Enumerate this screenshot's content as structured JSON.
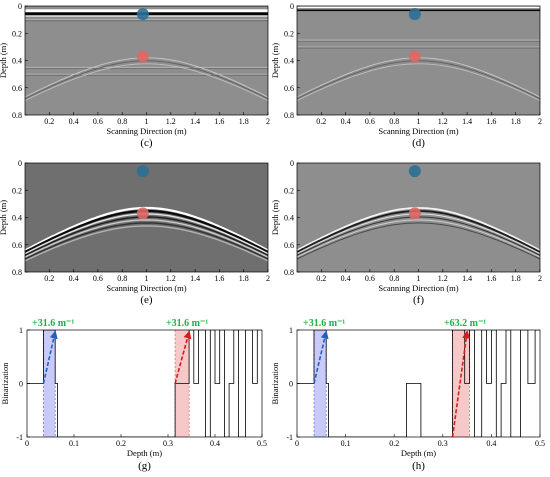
{
  "chart_data": [
    {
      "panel": "c",
      "type": "radargram",
      "caption": "(c)",
      "xlabel": "Scanning Direction (m)",
      "ylabel": "Depth (m)",
      "xlim": [
        0,
        2
      ],
      "ylim": [
        0.8,
        0
      ],
      "xticks": [
        "0.2",
        "0.4",
        "0.6",
        "0.8",
        "1",
        "1.2",
        "1.4",
        "1.6",
        "1.8",
        "2"
      ],
      "yticks": [
        "0",
        "0.2",
        "0.4",
        "0.6",
        "0.8"
      ],
      "background": "#8e8e8e",
      "surface_band": {
        "depth": 0.05,
        "strength": "strong"
      },
      "horizontal_reflections": [
        0.1,
        0.45,
        0.5
      ],
      "hyperbola": {
        "apex_x": 1.0,
        "apex_depth": 0.38,
        "strength": "weak"
      },
      "markers": [
        {
          "x": 0.97,
          "y": 0.06,
          "color": "#2a6f97"
        },
        {
          "x": 0.97,
          "y": 0.37,
          "color": "#e06666"
        }
      ]
    },
    {
      "panel": "d",
      "type": "radargram",
      "caption": "(d)",
      "xlabel": "Scanning Direction (m)",
      "ylabel": "Depth (m)",
      "xlim": [
        0,
        2
      ],
      "ylim": [
        0.8,
        0
      ],
      "xticks": [
        "0.2",
        "0.4",
        "0.6",
        "0.8",
        "1",
        "1.2",
        "1.4",
        "1.6",
        "1.8",
        "2"
      ],
      "yticks": [
        "0",
        "0.2",
        "0.4",
        "0.6",
        "0.8"
      ],
      "background": "#8e8e8e",
      "surface_band": {
        "depth": 0.03,
        "strength": "weak"
      },
      "horizontal_reflections": [
        0.25,
        0.3
      ],
      "hyperbola": {
        "apex_x": 1.0,
        "apex_depth": 0.38,
        "strength": "weak"
      },
      "markers": [
        {
          "x": 0.97,
          "y": 0.06,
          "color": "#2a6f97"
        },
        {
          "x": 0.97,
          "y": 0.37,
          "color": "#e06666"
        }
      ]
    },
    {
      "panel": "e",
      "type": "radargram",
      "caption": "(e)",
      "xlabel": "Scanning Direction (m)",
      "ylabel": "Depth (m)",
      "xlim": [
        0,
        2
      ],
      "ylim": [
        0.8,
        0
      ],
      "xticks": [
        "0.2",
        "0.4",
        "0.6",
        "0.8",
        "1",
        "1.2",
        "1.4",
        "1.6",
        "1.8",
        "2"
      ],
      "yticks": [
        "0",
        "0.2",
        "0.4",
        "0.6",
        "0.8"
      ],
      "background": "#6f6f6f",
      "surface_band": null,
      "horizontal_reflections": [],
      "hyperbola": {
        "apex_x": 1.0,
        "apex_depth": 0.33,
        "strength": "strong"
      },
      "markers": [
        {
          "x": 0.97,
          "y": 0.06,
          "color": "#2a6f97"
        },
        {
          "x": 0.97,
          "y": 0.37,
          "color": "#e06666"
        }
      ]
    },
    {
      "panel": "f",
      "type": "radargram",
      "caption": "(f)",
      "xlabel": "Scanning Direction (m)",
      "ylabel": "Depth (m)",
      "xlim": [
        0,
        2
      ],
      "ylim": [
        0.8,
        0
      ],
      "xticks": [
        "0.2",
        "0.4",
        "0.6",
        "0.8",
        "1",
        "1.2",
        "1.4",
        "1.6",
        "1.8",
        "2"
      ],
      "yticks": [
        "0",
        "0.2",
        "0.4",
        "0.6",
        "0.8"
      ],
      "background": "#8e8e8e",
      "surface_band": null,
      "horizontal_reflections": [],
      "hyperbola": {
        "apex_x": 1.0,
        "apex_depth": 0.33,
        "strength": "medium"
      },
      "markers": [
        {
          "x": 0.97,
          "y": 0.06,
          "color": "#2a6f97"
        },
        {
          "x": 0.97,
          "y": 0.37,
          "color": "#e06666"
        }
      ]
    },
    {
      "panel": "g",
      "type": "line",
      "caption": "(g)",
      "xlabel": "Depth (m)",
      "ylabel": "Binarization",
      "xlim": [
        0,
        0.5
      ],
      "ylim": [
        -1,
        1
      ],
      "xticks": [
        "0",
        "0.1",
        "0.2",
        "0.3",
        "0.4",
        "0.5"
      ],
      "yticks": [
        "-1",
        "0",
        "1"
      ],
      "step_x": [
        0,
        0.035,
        0.035,
        0.06,
        0.06,
        0.065,
        0.065,
        0.08,
        0.08,
        0.315,
        0.315,
        0.345,
        0.345,
        0.355,
        0.355,
        0.365,
        0.365,
        0.38,
        0.38,
        0.39,
        0.39,
        0.4,
        0.4,
        0.41,
        0.41,
        0.42,
        0.42,
        0.43,
        0.43,
        0.44,
        0.44,
        0.45,
        0.45,
        0.465,
        0.465,
        0.48,
        0.48,
        0.49,
        0.49,
        0.5
      ],
      "step_y": [
        0,
        0,
        1,
        1,
        0,
        0,
        -1,
        -1,
        -1,
        -1,
        0,
        0,
        1,
        1,
        0,
        0,
        1,
        1,
        -1,
        -1,
        1,
        1,
        0,
        0,
        1,
        1,
        -1,
        -1,
        0,
        0,
        1,
        1,
        -1,
        -1,
        1,
        1,
        0,
        0,
        1,
        1
      ],
      "shaded_regions": [
        {
          "from": 0.035,
          "to": 0.06,
          "color": "#4f4ff0"
        },
        {
          "from": 0.315,
          "to": 0.345,
          "color": "#e04848"
        }
      ],
      "arrows": [
        {
          "x0": 0.035,
          "y0": 0,
          "x1": 0.06,
          "y1": 1,
          "color": "#1f5fbf",
          "label": "+31.6 m⁻¹"
        },
        {
          "x0": 0.315,
          "y0": 0,
          "x1": 0.345,
          "y1": 1,
          "color": "#d81b1b",
          "label": "+31.6 m⁻¹"
        }
      ],
      "label_color": "#20b040"
    },
    {
      "panel": "h",
      "type": "line",
      "caption": "(h)",
      "xlabel": "Depth (m)",
      "ylabel": "Binarization",
      "xlim": [
        0,
        0.5
      ],
      "ylim": [
        -1,
        1
      ],
      "xticks": [
        "0",
        "0.1",
        "0.2",
        "0.3",
        "0.4",
        "0.5"
      ],
      "yticks": [
        "-1",
        "0",
        "1"
      ],
      "step_x": [
        0,
        0.035,
        0.035,
        0.06,
        0.06,
        0.065,
        0.065,
        0.08,
        0.08,
        0.225,
        0.225,
        0.255,
        0.255,
        0.32,
        0.32,
        0.345,
        0.345,
        0.355,
        0.355,
        0.365,
        0.365,
        0.38,
        0.38,
        0.39,
        0.39,
        0.4,
        0.4,
        0.41,
        0.41,
        0.42,
        0.42,
        0.43,
        0.43,
        0.44,
        0.44,
        0.46,
        0.46,
        0.475,
        0.475,
        0.49,
        0.49,
        0.5
      ],
      "step_y": [
        0,
        0,
        1,
        1,
        0,
        0,
        -1,
        -1,
        -1,
        -1,
        0,
        0,
        -1,
        -1,
        1,
        1,
        0,
        0,
        1,
        1,
        -1,
        -1,
        1,
        1,
        0,
        0,
        1,
        1,
        -1,
        -1,
        0,
        0,
        1,
        1,
        -1,
        -1,
        1,
        1,
        0,
        0,
        1,
        1
      ],
      "shaded_regions": [
        {
          "from": 0.035,
          "to": 0.06,
          "color": "#4f4ff0"
        },
        {
          "from": 0.32,
          "to": 0.355,
          "color": "#e04848"
        }
      ],
      "arrows": [
        {
          "x0": 0.035,
          "y0": 0,
          "x1": 0.06,
          "y1": 1,
          "color": "#1f5fbf",
          "label": "+31.6 m⁻¹"
        },
        {
          "x0": 0.32,
          "y0": -1,
          "x1": 0.35,
          "y1": 1,
          "color": "#d81b1b",
          "label": "+63.2 m⁻¹"
        }
      ],
      "label_color": "#20b040"
    }
  ]
}
